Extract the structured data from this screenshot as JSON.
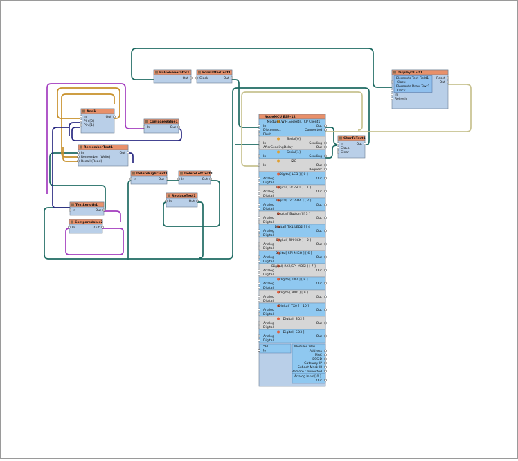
{
  "components": [
    {
      "title": "And1",
      "inputs": [
        "In",
        "Pin [0]",
        "Pin [1]"
      ],
      "outputs": [
        "Out"
      ]
    },
    {
      "title": "CompareValue1",
      "inputs": [
        "In"
      ],
      "outputs": [
        "Out"
      ]
    },
    {
      "title": "RememberText1",
      "inputs": [
        "In",
        "Remember (Write)",
        "Recall (Read)"
      ],
      "outputs": [
        "Out"
      ]
    },
    {
      "title": "PulseGenerator1",
      "inputs": [],
      "outputs": [
        "Out"
      ]
    },
    {
      "title": "FormattedText1",
      "inputs": [
        "Clock"
      ],
      "outputs": [
        "Out"
      ]
    },
    {
      "title": "DeleteRightText1",
      "inputs": [
        "In"
      ],
      "outputs": [
        "Out"
      ]
    },
    {
      "title": "DeleteLeftText1",
      "inputs": [
        "In"
      ],
      "outputs": [
        "Out"
      ]
    },
    {
      "title": "ReplaceText1",
      "inputs": [
        "In"
      ],
      "outputs": [
        "Out"
      ]
    },
    {
      "title": "TextLength1",
      "inputs": [
        "In"
      ],
      "outputs": [
        "Out"
      ]
    },
    {
      "title": "CompareValue2",
      "inputs": [
        "In"
      ],
      "outputs": [
        "Out"
      ]
    },
    {
      "title": "CharToText1",
      "inputs": [
        "In",
        "Clock",
        "Clear"
      ],
      "outputs": [
        "Out"
      ]
    },
    {
      "title": "DisplayOLED1",
      "elements": [
        {
          "title": "Elements Text Field1",
          "inputs": [
            "Clock"
          ]
        },
        {
          "title": "Elements Draw Text1",
          "inputs": [
            "Clock"
          ]
        }
      ],
      "inputs": [
        "In",
        "Refresh"
      ],
      "outputs": [
        "Reset",
        "Out"
      ]
    }
  ],
  "board": {
    "title": "NodeMCU ESP-12",
    "sections": [
      {
        "title": "Modules.WiFi.Sockets.TCP Client1",
        "inputs": [
          "In",
          "Disconnect",
          "Flush"
        ],
        "outputs": [
          "Out",
          "Connected"
        ]
      },
      {
        "title": "Serial[0]",
        "inputs": [
          "In",
          "AfterSendingDelay"
        ],
        "outputs": [
          "Sending",
          "Out"
        ]
      },
      {
        "title": "Serial[1]",
        "inputs": [
          "In"
        ],
        "outputs": [
          "Sending"
        ]
      },
      {
        "title": "I2C",
        "inputs": [
          "In"
        ],
        "outputs": [
          "Out",
          "Request"
        ]
      },
      {
        "title": "Digital[ LED ] [ 0 ]",
        "inputs": [
          "Analog",
          "Digital"
        ],
        "outputs": [
          "Out"
        ]
      },
      {
        "title": "Digital[ I2C-SCL ] [ 1 ]",
        "inputs": [
          "Analog",
          "Digital"
        ],
        "outputs": [
          "Out"
        ]
      },
      {
        "title": "Digital[ I2C-SDA ] [ 2 ]",
        "inputs": [
          "Analog",
          "Digital"
        ],
        "outputs": [
          "Out"
        ]
      },
      {
        "title": "Digital[ Button ] [ 3 ]",
        "inputs": [
          "Analog",
          "Digital"
        ],
        "outputs": [
          "Out"
        ]
      },
      {
        "title": "Digital[ TX1/LED2 ] [ 4 ]",
        "inputs": [
          "Analog",
          "Digital"
        ],
        "outputs": [
          "Out"
        ]
      },
      {
        "title": "Digital[ SPI-SCK ] [ 5 ]",
        "inputs": [
          "Analog",
          "Digital"
        ],
        "outputs": [
          "Out"
        ]
      },
      {
        "title": "Digital[ SPI-MISO ] [ 6 ]",
        "inputs": [
          "Analog",
          "Digital"
        ],
        "outputs": [
          "Out"
        ]
      },
      {
        "title": "Digital[ RX2/SPI-MOSI ] [ 7 ]",
        "inputs": [
          "Analog",
          "Digital"
        ],
        "outputs": [
          "Out"
        ]
      },
      {
        "title": "Digital[ TX2 ] [ 8 ]",
        "inputs": [
          "Analog",
          "Digital"
        ],
        "outputs": [
          "Out"
        ]
      },
      {
        "title": "Digital[ RX0 ] [ 9 ]",
        "inputs": [
          "Analog",
          "Digital"
        ],
        "outputs": [
          "Out"
        ]
      },
      {
        "title": "Digital[ TX0 ] [ 10 ]",
        "inputs": [
          "Analog",
          "Digital"
        ],
        "outputs": [
          "Out"
        ]
      },
      {
        "title": "Digital[ SD2 ]",
        "inputs": [
          "Analog",
          "Digital"
        ],
        "outputs": [
          "Out"
        ]
      },
      {
        "title": "Digital[ SD3 ]",
        "inputs": [
          "Analog",
          "Digital"
        ],
        "outputs": [
          "Out"
        ]
      }
    ],
    "spi": {
      "title": "SPI",
      "inputs": [
        "In"
      ]
    },
    "wifi": {
      "title": "Modules.WiFi",
      "outputs": [
        "Address",
        "MAC",
        "BSSID",
        "Gateway IP",
        "Subnet Mask IP",
        "Remote Connected"
      ]
    },
    "analog": {
      "title": "Analog Input[ 0 ]",
      "outputs": [
        "Out"
      ]
    }
  }
}
